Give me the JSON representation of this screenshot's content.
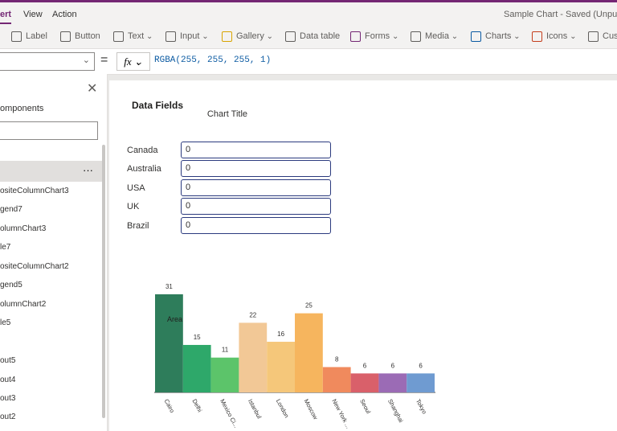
{
  "menu": {
    "tabs": [
      "ert",
      "View",
      "Action"
    ],
    "app_title": "Sample Chart - Saved (Unpublis"
  },
  "toolbar": [
    "Label",
    "Button",
    "Text",
    "Input",
    "Gallery",
    "Data table",
    "Forms",
    "Media",
    "Charts",
    "Icons",
    "Cus"
  ],
  "formula": "RGBA(255, 255, 255, 1)",
  "tree": {
    "heading": "omponents",
    "items": [
      "ositeColumnChart3",
      "gend7",
      "olumnChart3",
      "le7",
      "ositeColumnChart2",
      "gend5",
      "olumnChart2",
      "le5",
      "out5",
      "out4",
      "out3",
      "out2"
    ]
  },
  "canvas": {
    "title": "Data Fields",
    "form": [
      {
        "label": "Canada",
        "value": 0
      },
      {
        "label": "Australia",
        "value": 0
      },
      {
        "label": "USA",
        "value": 0
      },
      {
        "label": "UK",
        "value": 0
      },
      {
        "label": "Brazil",
        "value": 0
      }
    ]
  },
  "chart_data": {
    "type": "bar",
    "title": "Chart Title",
    "categories": [
      "Cairo",
      "Delhi",
      "Mexico Ci...",
      "Istanbul",
      "London",
      "Moscow",
      "New York ...",
      "Seoul",
      "Shanghai",
      "Tokyo"
    ],
    "values": [
      31,
      15,
      11,
      22,
      16,
      25,
      8,
      6,
      6,
      6
    ],
    "colors": [
      "#2e7d5b",
      "#2ea86a",
      "#5cc46a",
      "#f2c896",
      "#f5c77a",
      "#f6b55e",
      "#f08a5d",
      "#d9606a",
      "#9b6bb5",
      "#6f9bd1"
    ],
    "annotation": "Area"
  }
}
